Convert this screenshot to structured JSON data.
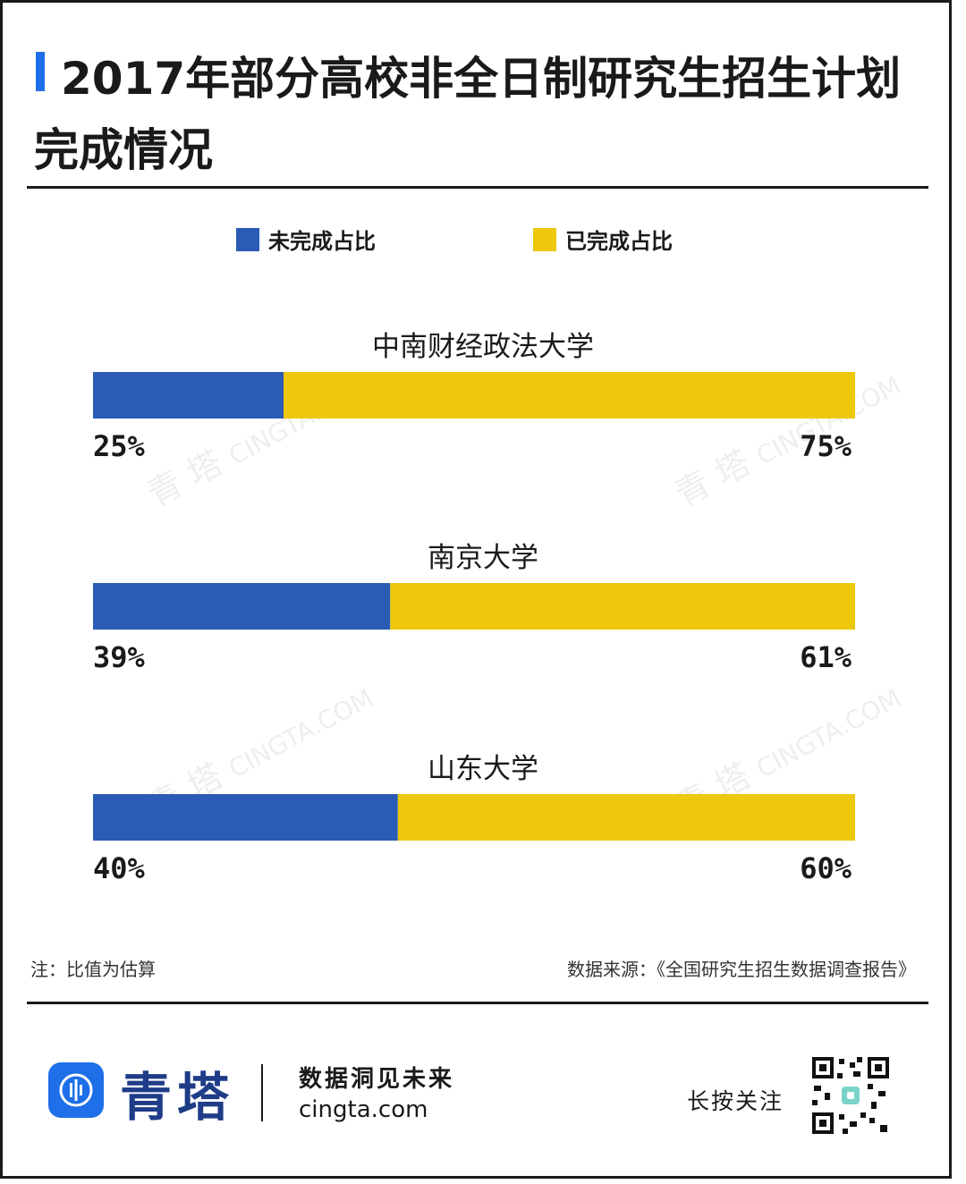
{
  "title": {
    "line1": "2017年部分高校非全日制研究生招生计划",
    "line2": "完成情况"
  },
  "colors": {
    "unfinished": "#2a5bb5",
    "finished": "#edc80c",
    "accent": "#1e6fe8",
    "text": "#1a1a1a"
  },
  "legend": {
    "unfinished": "未完成占比",
    "finished": "已完成占比"
  },
  "chart_data": {
    "type": "bar",
    "orientation": "horizontal-stacked-100",
    "legend_position": "top",
    "grid": false,
    "xlim": [
      0,
      100
    ],
    "series": [
      {
        "name": "未完成占比",
        "values": [
          25,
          39,
          40
        ]
      },
      {
        "name": "已完成占比",
        "values": [
          75,
          61,
          60
        ]
      }
    ],
    "categories": [
      "中南财经政法大学",
      "南京大学",
      "山东大学"
    ],
    "labels_unfinished": [
      "25%",
      "39%",
      "40%"
    ],
    "labels_finished": [
      "75%",
      "61%",
      "60%"
    ]
  },
  "notes": {
    "left": "注：比值为估算",
    "right": "数据来源：《全国研究生招生数据调查报告》"
  },
  "footer": {
    "brand": "青塔",
    "slogan": "数据洞见未来",
    "domain": "cingta.com",
    "follow": "长按关注",
    "logo_icon": "cingta-logo-icon",
    "qr_icon": "qr-code-icon"
  },
  "watermark": {
    "cn": "青 塔",
    "en": "CINGTA.COM"
  }
}
